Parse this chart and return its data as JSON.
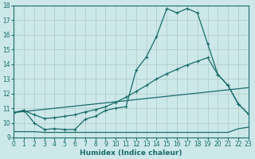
{
  "xlabel": "Humidex (Indice chaleur)",
  "bg_color": "#cce8e8",
  "line_color": "#1a6b6b",
  "grid_color": "#b0c8c8",
  "xmin": 0,
  "xmax": 23,
  "ymin": 9,
  "ymax": 18,
  "curve1_x": [
    0,
    1,
    2,
    3,
    4,
    5,
    6,
    7,
    8,
    9,
    10,
    11,
    12,
    13,
    14,
    15,
    16,
    17,
    18,
    19,
    20,
    21,
    22,
    23
  ],
  "curve1_y": [
    10.7,
    10.85,
    10.55,
    10.3,
    10.35,
    10.45,
    10.55,
    10.75,
    10.9,
    11.1,
    11.4,
    11.75,
    12.15,
    12.55,
    13.0,
    13.35,
    13.65,
    13.95,
    14.2,
    14.45,
    13.3,
    12.55,
    11.3,
    10.6
  ],
  "curve2_x": [
    0,
    1,
    2,
    3,
    4,
    5,
    6,
    7,
    8,
    9,
    10,
    11,
    12,
    13,
    14,
    15,
    16,
    17,
    18,
    19,
    20,
    21,
    22,
    23
  ],
  "curve2_y": [
    10.7,
    10.85,
    10.0,
    9.55,
    9.6,
    9.55,
    9.55,
    10.25,
    10.45,
    10.85,
    11.0,
    11.1,
    13.6,
    14.5,
    15.9,
    17.8,
    17.5,
    17.8,
    17.5,
    15.4,
    13.3,
    12.55,
    11.3,
    10.6
  ],
  "curve3_x": [
    0,
    1,
    2,
    3,
    4,
    5,
    6,
    7,
    8,
    9,
    10,
    11,
    12,
    13,
    14,
    15,
    16,
    17,
    18,
    19,
    20,
    21,
    22,
    23
  ],
  "curve3_y": [
    9.4,
    9.4,
    9.4,
    9.35,
    9.35,
    9.35,
    9.35,
    9.35,
    9.35,
    9.35,
    9.35,
    9.35,
    9.35,
    9.35,
    9.35,
    9.35,
    9.35,
    9.35,
    9.35,
    9.35,
    9.35,
    9.35,
    9.6,
    9.7
  ]
}
